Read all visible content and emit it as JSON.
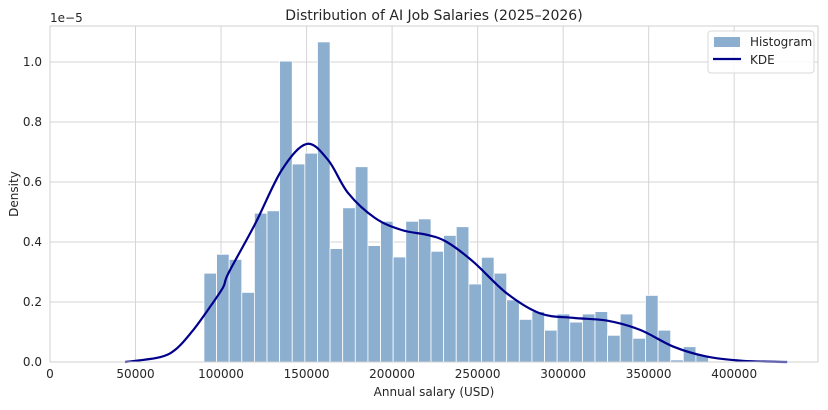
{
  "chart_data": {
    "type": "bar",
    "title": "Distribution of AI Job Salaries (2025–2026)",
    "xlabel": "Annual salary (USD)",
    "ylabel": "Density",
    "y_offset_text": "1e−5",
    "xlim": [
      0,
      449000
    ],
    "ylim": [
      0,
      1.12
    ],
    "xticks": [
      0,
      50000,
      100000,
      150000,
      200000,
      250000,
      300000,
      350000,
      400000
    ],
    "xtick_labels": [
      "0",
      "50000",
      "100000",
      "150000",
      "200000",
      "250000",
      "300000",
      "350000",
      "400000"
    ],
    "yticks": [
      0,
      0.2,
      0.4,
      0.6,
      0.8,
      1.0
    ],
    "ytick_labels": [
      "0.0",
      "0.2",
      "0.4",
      "0.6",
      "0.8",
      "1.0"
    ],
    "grid": true,
    "legend": {
      "placement": "top-right",
      "entries": [
        "Histogram",
        "KDE"
      ]
    },
    "colors": {
      "histogram": "#8cafd0",
      "kde": "#00008b",
      "grid": "#d5d5d5"
    },
    "histogram": {
      "name": "Histogram",
      "bin_start": 90000,
      "bin_width": 7375,
      "values": [
        0.296,
        0.359,
        0.342,
        0.232,
        0.496,
        0.504,
        1.003,
        0.66,
        0.696,
        1.067,
        0.378,
        0.514,
        0.651,
        0.388,
        0.469,
        0.35,
        0.469,
        0.477,
        0.369,
        0.422,
        0.451,
        0.26,
        0.349,
        0.296,
        0.207,
        0.142,
        0.168,
        0.106,
        0.16,
        0.133,
        0.16,
        0.168,
        0.089,
        0.16,
        0.079,
        0.222,
        0.106,
        0.007,
        0.051,
        0.023
      ]
    },
    "kde": {
      "name": "KDE",
      "x": [
        43900,
        64300,
        74100,
        83800,
        93600,
        101300,
        104300,
        119900,
        135500,
        150100,
        162600,
        174300,
        190000,
        205600,
        221000,
        232000,
        247500,
        267000,
        286500,
        306000,
        325500,
        345000,
        364500,
        384000,
        405000,
        431000
      ],
      "y": [
        0,
        0.016,
        0.045,
        0.107,
        0.184,
        0.25,
        0.296,
        0.46,
        0.64,
        0.727,
        0.673,
        0.563,
        0.48,
        0.44,
        0.423,
        0.4,
        0.334,
        0.229,
        0.162,
        0.147,
        0.138,
        0.107,
        0.051,
        0.018,
        0.004,
        0
      ]
    }
  }
}
